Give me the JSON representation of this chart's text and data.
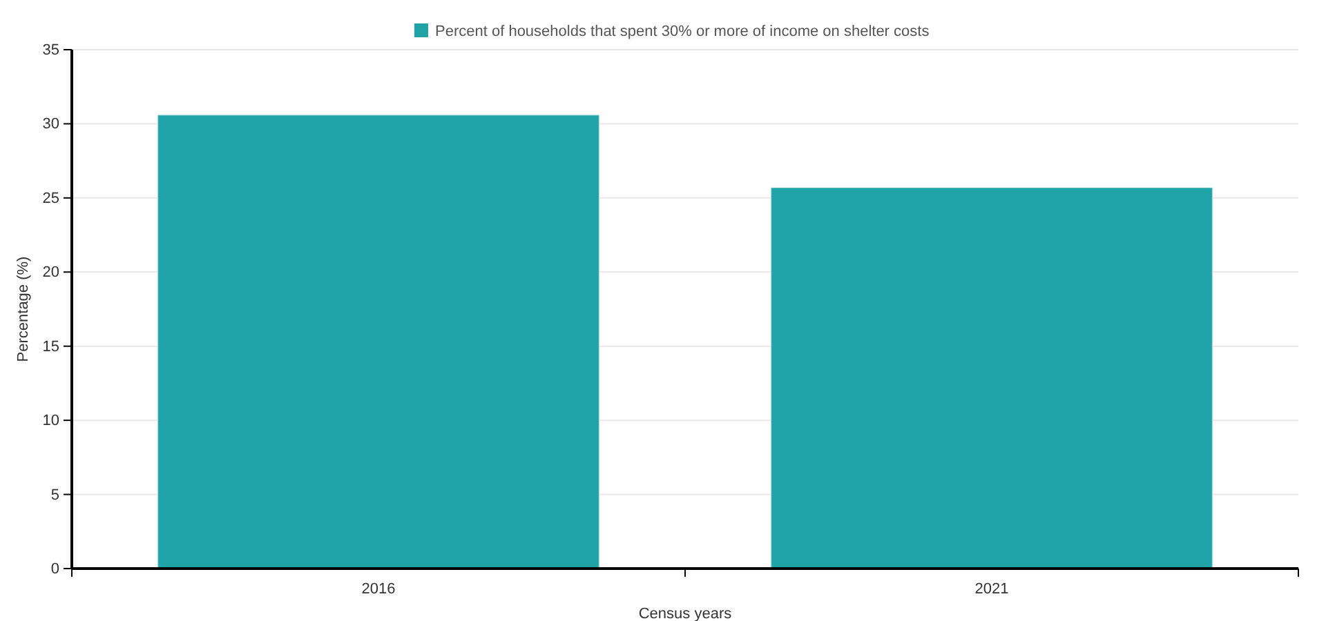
{
  "chart_data": {
    "type": "bar",
    "xlabel": "Census years",
    "ylabel": "Percentage (%)",
    "categories": [
      "2016",
      "2021"
    ],
    "series": [
      {
        "name": "Percent of households that spent 30% or more of income on shelter costs",
        "color": "#1fa3a6",
        "values": [
          30.6,
          25.7
        ]
      }
    ],
    "ylim": [
      0,
      35
    ],
    "yticks": [
      0,
      5,
      10,
      15,
      20,
      25,
      30,
      35
    ],
    "grid": "y",
    "legend": "top"
  }
}
